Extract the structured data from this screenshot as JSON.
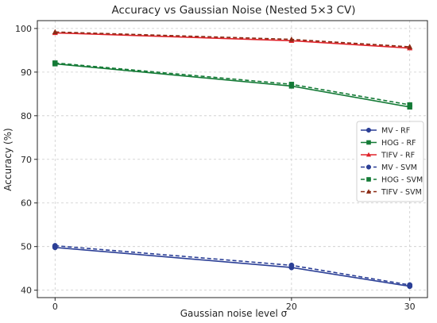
{
  "chart_data": {
    "type": "line",
    "title": "Accuracy vs Gaussian Noise (Nested 5×3 CV)",
    "xlabel": "Gaussian noise level σ",
    "ylabel": "Accuracy (%)",
    "x": [
      0,
      20,
      30
    ],
    "x_ticks": [
      0,
      20,
      30
    ],
    "y_ticks": [
      40,
      50,
      60,
      70,
      80,
      90,
      100
    ],
    "xlim": [
      -1.5,
      31.5
    ],
    "ylim": [
      38.3,
      101.8
    ],
    "grid": true,
    "legend_position": "center-right",
    "series": [
      {
        "name": "MV - RF",
        "values": [
          49.8,
          45.2,
          40.9
        ],
        "color": "#2b3f96",
        "marker": "circle",
        "dashed": false
      },
      {
        "name": "HOG - RF",
        "values": [
          91.9,
          86.8,
          82.0
        ],
        "color": "#147a36",
        "marker": "square",
        "dashed": false
      },
      {
        "name": "TIFV - RF",
        "values": [
          99.0,
          97.2,
          95.5
        ],
        "color": "#e0222a",
        "marker": "triangle",
        "dashed": false
      },
      {
        "name": "MV - SVM",
        "values": [
          50.2,
          45.7,
          41.2
        ],
        "color": "#2b3f96",
        "marker": "circle",
        "dashed": true
      },
      {
        "name": "HOG - SVM",
        "values": [
          92.1,
          87.2,
          82.5
        ],
        "color": "#147a36",
        "marker": "square",
        "dashed": true
      },
      {
        "name": "TIFV - SVM",
        "values": [
          99.2,
          97.5,
          95.8
        ],
        "color": "#8b2a14",
        "marker": "triangle",
        "dashed": true
      }
    ]
  }
}
